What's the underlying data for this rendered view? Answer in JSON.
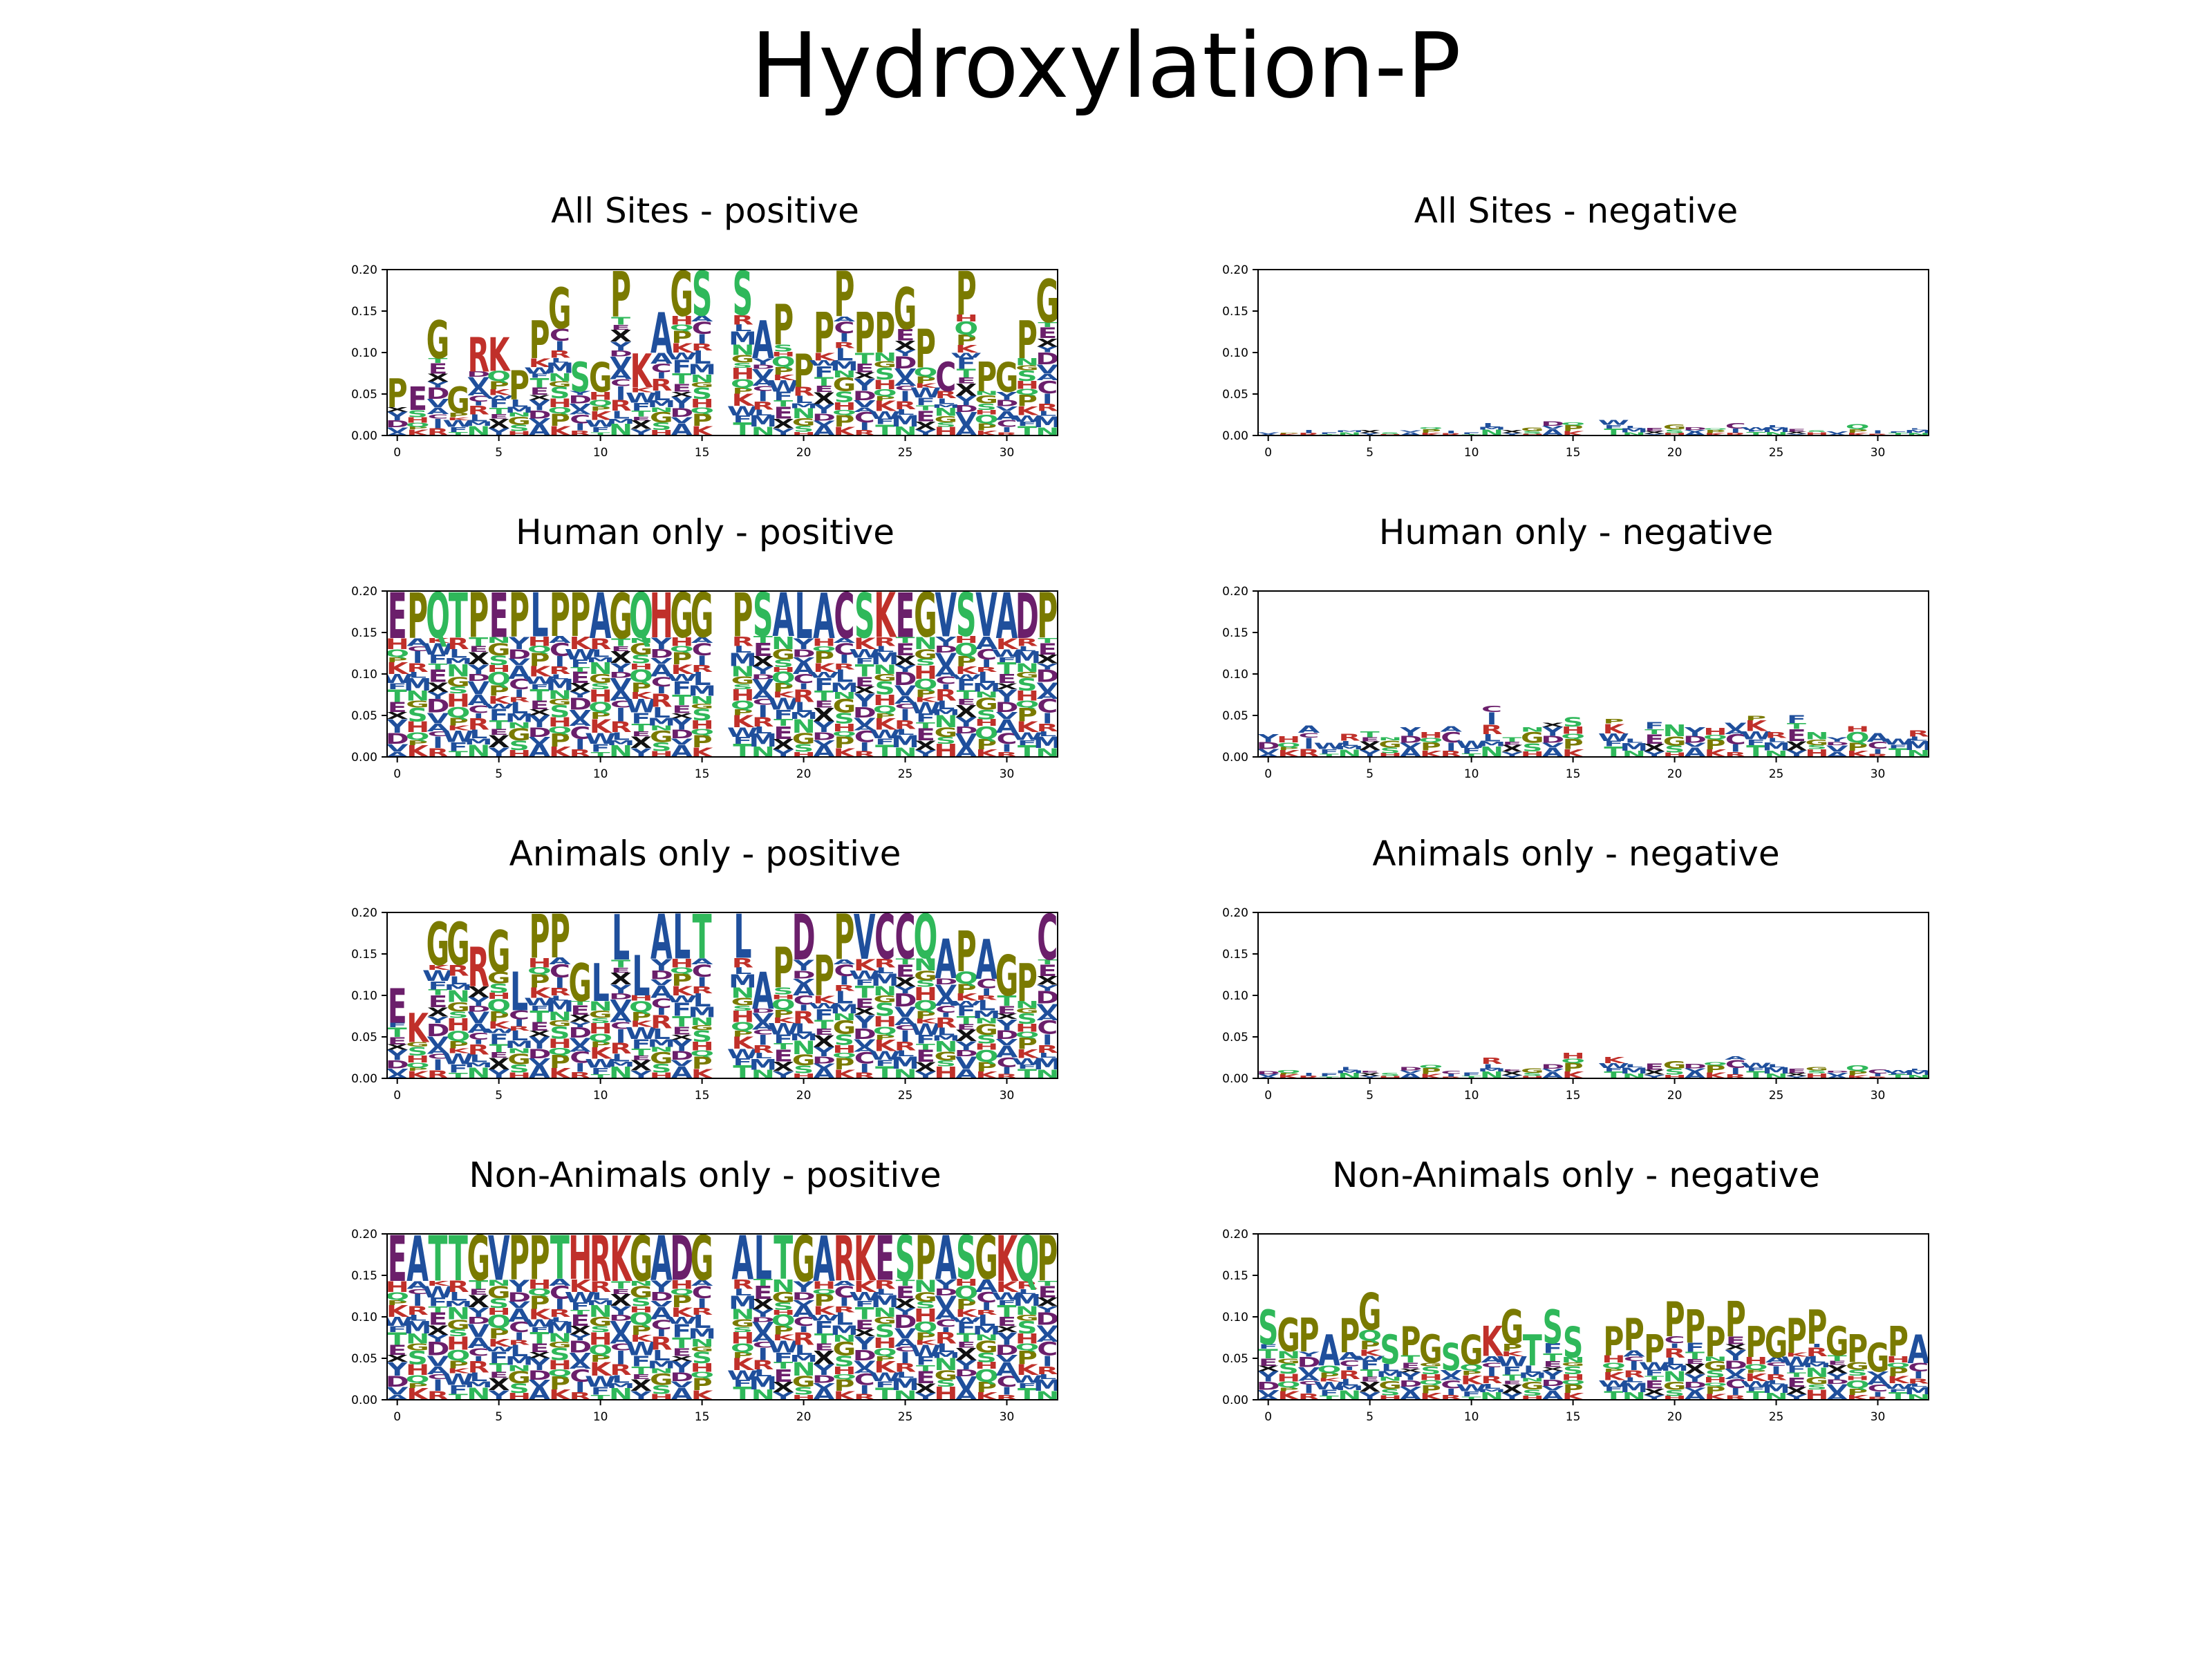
{
  "title": "Hydroxylation-P",
  "colors": {
    "G": "#7a7a00",
    "P": "#7a7a00",
    "C": "#6b1f6b",
    "D": "#6b1f6b",
    "E": "#6b1f6b",
    "A": "#1f4f9c",
    "V": "#1f4f9c",
    "I": "#1f4f9c",
    "L": "#1f4f9c",
    "F": "#1f4f9c",
    "M": "#1f4f9c",
    "W": "#1f4f9c",
    "Y": "#1f4f9c",
    "R": "#c0302a",
    "K": "#c0302a",
    "H": "#c0302a",
    "S": "#2fb85a",
    "T": "#2fb85a",
    "N": "#2fb85a",
    "Q": "#2fb85a",
    "X": "#111111",
    "B": "#111111",
    "Z": "#111111"
  },
  "chart_data": [
    {
      "id": "all-positive",
      "title": "All Sites - positive",
      "type": "sequence-logo",
      "ylim": [
        0,
        0.2
      ],
      "yticks": [
        "0.00",
        "0.05",
        "0.10",
        "0.15",
        "0.20"
      ],
      "xlim": [
        -0.5,
        32.5
      ],
      "xticks": [
        "0",
        "5",
        "10",
        "15",
        "20",
        "25",
        "30"
      ],
      "top_letters": [
        "P",
        "E",
        "G",
        "G",
        "R",
        "K",
        "P",
        "P",
        "G",
        "S",
        "G",
        "P",
        "K",
        "A",
        "G",
        "S",
        "",
        "S",
        "A",
        "P",
        "P",
        "P",
        "P",
        "P",
        "P",
        "G",
        "P",
        "C",
        "P",
        "P",
        "G",
        "P",
        "G"
      ],
      "column_heights": [
        0.07,
        0.06,
        0.14,
        0.06,
        0.12,
        0.12,
        0.08,
        0.14,
        0.18,
        0.09,
        0.09,
        0.2,
        0.1,
        0.15,
        0.2,
        0.2,
        0,
        0.2,
        0.14,
        0.16,
        0.1,
        0.15,
        0.2,
        0.15,
        0.15,
        0.18,
        0.13,
        0.09,
        0.2,
        0.09,
        0.09,
        0.14,
        0.19
      ]
    },
    {
      "id": "all-negative",
      "title": "All Sites - negative",
      "type": "sequence-logo",
      "ylim": [
        0,
        0.2
      ],
      "yticks": [
        "0.00",
        "0.05",
        "0.10",
        "0.15",
        "0.20"
      ],
      "xlim": [
        -0.5,
        32.5
      ],
      "xticks": [
        "0",
        "5",
        "10",
        "15",
        "20",
        "25",
        "30"
      ],
      "top_letters": [],
      "column_heights": [
        0.004,
        0.003,
        0.007,
        0.004,
        0.006,
        0.007,
        0.004,
        0.006,
        0.01,
        0.006,
        0.004,
        0.015,
        0.007,
        0.01,
        0.017,
        0.016,
        0,
        0.019,
        0.011,
        0.009,
        0.014,
        0.01,
        0.009,
        0.015,
        0.01,
        0.012,
        0.008,
        0.006,
        0.005,
        0.014,
        0.006,
        0.005,
        0.009
      ]
    },
    {
      "id": "human-positive",
      "title": "Human only - positive",
      "type": "sequence-logo",
      "ylim": [
        0,
        0.2
      ],
      "yticks": [
        "0.00",
        "0.05",
        "0.10",
        "0.15",
        "0.20"
      ],
      "xlim": [
        -0.5,
        32.5
      ],
      "xticks": [
        "0",
        "5",
        "10",
        "15",
        "20",
        "25",
        "30"
      ],
      "top_letters": [
        "E",
        "P",
        "Q",
        "T",
        "P",
        "E",
        "P",
        "L",
        "P",
        "P",
        "A",
        "G",
        "Q",
        "H",
        "G",
        "G",
        "",
        "P",
        "S",
        "A",
        "L",
        "A",
        "C",
        "S",
        "K",
        "E",
        "G",
        "V",
        "S",
        "V",
        "A",
        "D",
        "P"
      ],
      "column_heights": [
        0.2,
        0.2,
        0.2,
        0.2,
        0.2,
        0.2,
        0.2,
        0.2,
        0.2,
        0.2,
        0.2,
        0.2,
        0.2,
        0.2,
        0.2,
        0.2,
        0,
        0.2,
        0.2,
        0.2,
        0.2,
        0.2,
        0.2,
        0.2,
        0.2,
        0.2,
        0.2,
        0.2,
        0.2,
        0.2,
        0.2,
        0.2,
        0.2
      ]
    },
    {
      "id": "human-negative",
      "title": "Human only - negative",
      "type": "sequence-logo",
      "ylim": [
        0,
        0.2
      ],
      "yticks": [
        "0.00",
        "0.05",
        "0.10",
        "0.15",
        "0.20"
      ],
      "xlim": [
        -0.5,
        32.5
      ],
      "xticks": [
        "0",
        "5",
        "10",
        "15",
        "20",
        "25",
        "30"
      ],
      "top_letters": [],
      "column_heights": [
        0.028,
        0.025,
        0.038,
        0.017,
        0.028,
        0.031,
        0.024,
        0.036,
        0.03,
        0.037,
        0.02,
        0.062,
        0.024,
        0.036,
        0.041,
        0.048,
        0,
        0.046,
        0.022,
        0.042,
        0.039,
        0.036,
        0.035,
        0.041,
        0.05,
        0.03,
        0.051,
        0.03,
        0.024,
        0.037,
        0.029,
        0.022,
        0.032
      ]
    },
    {
      "id": "animals-positive",
      "title": "Animals only - positive",
      "type": "sequence-logo",
      "ylim": [
        0,
        0.2
      ],
      "yticks": [
        "0.00",
        "0.05",
        "0.10",
        "0.15",
        "0.20"
      ],
      "xlim": [
        -0.5,
        32.5
      ],
      "xticks": [
        "0",
        "5",
        "10",
        "15",
        "20",
        "25",
        "30"
      ],
      "top_letters": [
        "E",
        "K",
        "G",
        "G",
        "R",
        "G",
        "L",
        "P",
        "P",
        "G",
        "L",
        "L",
        "L",
        "A",
        "L",
        "T",
        "",
        "L",
        "A",
        "P",
        "D",
        "P",
        "P",
        "V",
        "C",
        "C",
        "Q",
        "A",
        "P",
        "A",
        "G",
        "P",
        "C"
      ],
      "column_heights": [
        0.11,
        0.08,
        0.19,
        0.19,
        0.16,
        0.18,
        0.13,
        0.2,
        0.2,
        0.14,
        0.14,
        0.2,
        0.15,
        0.2,
        0.2,
        0.2,
        0,
        0.2,
        0.13,
        0.16,
        0.2,
        0.15,
        0.2,
        0.2,
        0.2,
        0.2,
        0.2,
        0.17,
        0.18,
        0.17,
        0.15,
        0.14,
        0.2
      ]
    },
    {
      "id": "animals-negative",
      "title": "Animals only - negative",
      "type": "sequence-logo",
      "ylim": [
        0,
        0.2
      ],
      "yticks": [
        "0.00",
        "0.05",
        "0.10",
        "0.15",
        "0.20"
      ],
      "xlim": [
        -0.5,
        32.5
      ],
      "xticks": [
        "0",
        "5",
        "10",
        "15",
        "20",
        "25",
        "30"
      ],
      "top_letters": [],
      "column_heights": [
        0.009,
        0.01,
        0.007,
        0.006,
        0.014,
        0.009,
        0.007,
        0.014,
        0.016,
        0.009,
        0.007,
        0.025,
        0.011,
        0.012,
        0.017,
        0.031,
        0,
        0.026,
        0.017,
        0.018,
        0.021,
        0.018,
        0.02,
        0.027,
        0.019,
        0.017,
        0.012,
        0.014,
        0.009,
        0.016,
        0.011,
        0.01,
        0.012
      ]
    },
    {
      "id": "nonanimals-positive",
      "title": "Non-Animals only - positive",
      "type": "sequence-logo",
      "ylim": [
        0,
        0.2
      ],
      "yticks": [
        "0.00",
        "0.05",
        "0.10",
        "0.15",
        "0.20"
      ],
      "xlim": [
        -0.5,
        32.5
      ],
      "xticks": [
        "0",
        "5",
        "10",
        "15",
        "20",
        "25",
        "30"
      ],
      "top_letters": [
        "E",
        "A",
        "T",
        "T",
        "G",
        "V",
        "P",
        "P",
        "T",
        "H",
        "R",
        "K",
        "G",
        "A",
        "D",
        "G",
        "",
        "A",
        "L",
        "T",
        "G",
        "A",
        "R",
        "K",
        "E",
        "S",
        "P",
        "A",
        "S",
        "G",
        "K",
        "Q",
        "P"
      ],
      "column_heights": [
        0.2,
        0.2,
        0.2,
        0.2,
        0.2,
        0.2,
        0.2,
        0.2,
        0.2,
        0.2,
        0.2,
        0.2,
        0.2,
        0.2,
        0.2,
        0.2,
        0,
        0.2,
        0.2,
        0.2,
        0.2,
        0.2,
        0.2,
        0.2,
        0.2,
        0.2,
        0.2,
        0.2,
        0.2,
        0.2,
        0.2,
        0.2,
        0.2
      ]
    },
    {
      "id": "nonanimals-negative",
      "title": "Non-Animals only - negative",
      "type": "sequence-logo",
      "ylim": [
        0,
        0.2
      ],
      "yticks": [
        "0.00",
        "0.05",
        "0.10",
        "0.15",
        "0.20"
      ],
      "xlim": [
        -0.5,
        32.5
      ],
      "xticks": [
        "0",
        "5",
        "10",
        "15",
        "20",
        "25",
        "30"
      ],
      "top_letters": [
        "S",
        "G",
        "P",
        "A",
        "P",
        "G",
        "S",
        "P",
        "G",
        "S",
        "G",
        "K",
        "G",
        "T",
        "S",
        "S",
        "",
        "P",
        "P",
        "P",
        "P",
        "P",
        "P",
        "P",
        "P",
        "G",
        "P",
        "P",
        "G",
        "P",
        "G",
        "P",
        "A"
      ],
      "column_heights": [
        0.11,
        0.1,
        0.1,
        0.08,
        0.1,
        0.13,
        0.08,
        0.09,
        0.08,
        0.07,
        0.08,
        0.09,
        0.11,
        0.08,
        0.11,
        0.09,
        0,
        0.09,
        0.1,
        0.08,
        0.12,
        0.11,
        0.09,
        0.12,
        0.09,
        0.09,
        0.1,
        0.11,
        0.09,
        0.08,
        0.07,
        0.09,
        0.08
      ]
    }
  ]
}
